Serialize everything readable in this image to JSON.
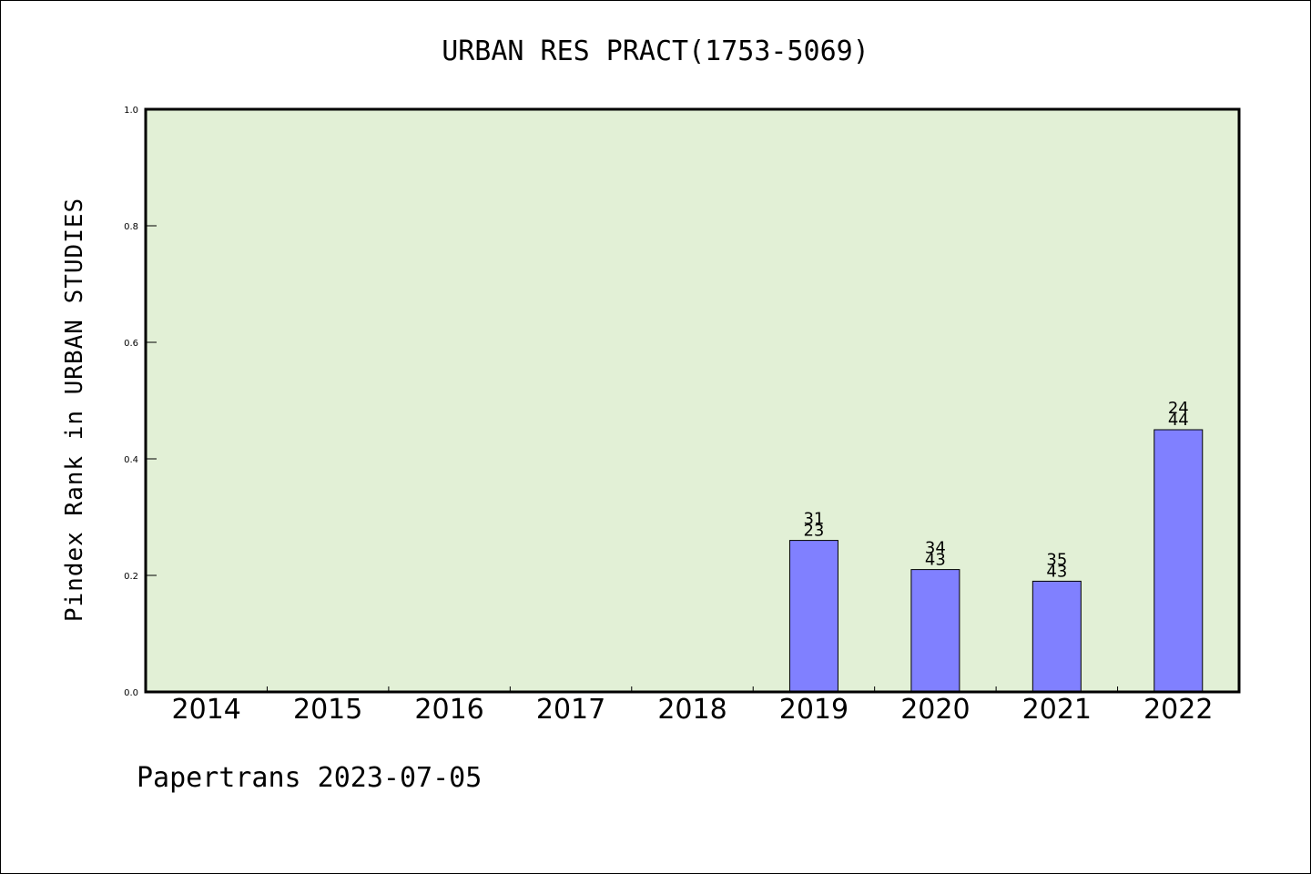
{
  "chart_data": {
    "type": "bar",
    "title": "URBAN RES PRACT(1753-5069)",
    "xlabel": "",
    "ylabel": "Pindex Rank in URBAN STUDIES",
    "footer": "Papertrans 2023-07-05",
    "categories": [
      "2014",
      "2015",
      "2016",
      "2017",
      "2018",
      "2019",
      "2020",
      "2021",
      "2022"
    ],
    "values": [
      null,
      null,
      null,
      null,
      null,
      0.26,
      0.21,
      0.19,
      0.45
    ],
    "labels_top": [
      "",
      "",
      "",
      "",
      "",
      "31",
      "34",
      "35",
      "24"
    ],
    "labels_bottom": [
      "",
      "",
      "",
      "",
      "",
      "23",
      "43",
      "43",
      "44"
    ],
    "ylim": [
      0,
      1.0
    ],
    "yticks": [
      "0.0",
      "0.2",
      "0.4",
      "0.6",
      "0.8",
      "1.0"
    ],
    "grid": false,
    "colors": {
      "plot_background": "#e2f0d6",
      "bar_fill": "#8080ff",
      "bar_stroke": "#000000"
    }
  }
}
